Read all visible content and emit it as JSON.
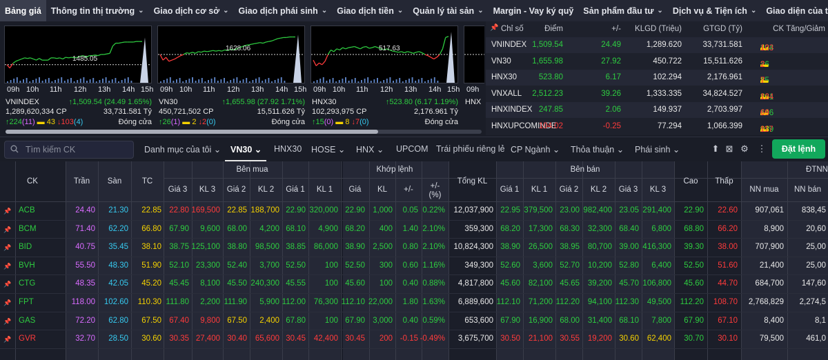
{
  "nav": {
    "items": [
      {
        "label": "Bảng giá",
        "chev": false,
        "active": true
      },
      {
        "label": "Thông tin thị trường",
        "chev": true
      },
      {
        "label": "Giao dịch cơ sở",
        "chev": true
      },
      {
        "label": "Giao dịch phái sinh",
        "chev": true
      },
      {
        "label": "Giao dịch tiền",
        "chev": true
      },
      {
        "label": "Quản lý tài sản",
        "chev": true
      },
      {
        "label": "Margin - Vay ký quỹ",
        "chev": false
      },
      {
        "label": "Sản phẩm đầu tư",
        "chev": true
      },
      {
        "label": "Dịch vụ & Tiện ích",
        "chev": true
      },
      {
        "label": "Giao diện của tôi",
        "chev": false
      }
    ]
  },
  "charts": [
    {
      "name": "VNINDEX",
      "ref_label": "1485.05",
      "change": "1,509.54 (24.49 1.65%)",
      "volume": "1,289,620,334 CP",
      "value": "33,731.581 Tỷ",
      "up": "224",
      "ceil": "(11)",
      "flat": "43",
      "down": "103",
      "floor": "(4)",
      "status": "Đóng cửa",
      "hours": [
        "09h",
        "10h",
        "11h",
        "12h",
        "13h",
        "14h",
        "15h"
      ],
      "ref_level": 0.68,
      "end_level": 0.2,
      "line": [
        0.68,
        0.74,
        0.66,
        0.62,
        0.6,
        0.58,
        0.56,
        0.57,
        0.56,
        0.58,
        0.6,
        0.57,
        0.6,
        0.6,
        0.6,
        0.56,
        0.56,
        0.57,
        0.56,
        0.58,
        0.55,
        0.56,
        0.55,
        0.56,
        0.55,
        0.53,
        0.52,
        0.55,
        0.52,
        0.52,
        0.51,
        0.52,
        0.5,
        0.5,
        0.49,
        0.48,
        0.35,
        0.3,
        0.3,
        0.29,
        0.28,
        0.28,
        0.28,
        0.28,
        0.27,
        0.27,
        0.27
      ]
    },
    {
      "name": "VN30",
      "ref_label": "1628.06",
      "change": "1,655.98 (27.92 1.71%)",
      "volume": "450,721,502 CP",
      "value": "15,511.626 Tỷ",
      "up": "26",
      "ceil": "(1)",
      "flat": "2",
      "down": "2",
      "floor": "(0)",
      "status": "Đóng cửa",
      "hours": [
        "09h",
        "10h",
        "11h",
        "12h",
        "13h",
        "14h",
        "15h"
      ],
      "ref_level": 0.5,
      "end_level": 0.15,
      "line": [
        0.5,
        0.6,
        0.55,
        0.62,
        0.6,
        0.58,
        0.55,
        0.52,
        0.5,
        0.47,
        0.48,
        0.46,
        0.48,
        0.45,
        0.46,
        0.44,
        0.45,
        0.44,
        0.43,
        0.44,
        0.43,
        0.44,
        0.42,
        0.43,
        0.41,
        0.42,
        0.4,
        0.38,
        0.36,
        0.34,
        0.33,
        0.32,
        0.31,
        0.3,
        0.29,
        0.3,
        0.28,
        0.27,
        0.26,
        0.24,
        0.22,
        0.21,
        0.2,
        0.2,
        0.19,
        0.19,
        0.19
      ]
    },
    {
      "name": "HNX30",
      "ref_label": "517.63",
      "change": "523.80 (6.17 1.19%)",
      "volume": "102,293,975 CP",
      "value": "2,176.961 Tỷ",
      "up": "15",
      "ceil": "(0)",
      "flat": "8",
      "down": "7",
      "floor": "(0)",
      "status": "Đóng cửa",
      "hours": [
        "09h",
        "10h",
        "11h",
        "12h",
        "13h",
        "14h",
        "15h"
      ],
      "ref_level": 0.5,
      "end_level": 0.1,
      "line": [
        0.6,
        0.7,
        0.65,
        0.68,
        0.62,
        0.5,
        0.42,
        0.45,
        0.4,
        0.42,
        0.38,
        0.4,
        0.38,
        0.37,
        0.36,
        0.38,
        0.4,
        0.37,
        0.36,
        0.39,
        0.38,
        0.36,
        0.38,
        0.4,
        0.42,
        0.4,
        0.42,
        0.44,
        0.45,
        0.46,
        0.45,
        0.47,
        0.45,
        0.46,
        0.48,
        0.46,
        0.45,
        0.47,
        0.5,
        0.52,
        0.55,
        0.58,
        0.55,
        0.5,
        0.4,
        0.2,
        0.18
      ]
    },
    {
      "name": "HNX",
      "ref_label": "",
      "change": "",
      "volume": "",
      "value": "",
      "up": "",
      "ceil": "",
      "flat": "",
      "down": "",
      "floor": "",
      "status": "",
      "hours": [
        "09h"
      ],
      "ref_level": 0.5,
      "end_level": 0.5,
      "line": []
    }
  ],
  "index_table": {
    "headers": {
      "name": "Chỉ số",
      "point": "Điểm",
      "change": "+/-",
      "klgd": "KLGD (Triệu)",
      "gtgd": "GTGD (Tỷ)",
      "breadth": "CK Tăng/Giảm"
    },
    "rows": [
      {
        "name": "VNINDEX",
        "point": "1,509.54",
        "change": "24.49",
        "klgd": "1,289.620",
        "gtgd": "33,731.581",
        "up": "224",
        "flat": "43",
        "down": "103",
        "color": "green"
      },
      {
        "name": "VN30",
        "point": "1,655.98",
        "change": "27.92",
        "klgd": "450.722",
        "gtgd": "15,511.626",
        "up": "26",
        "flat": "2",
        "down": "2",
        "color": "green"
      },
      {
        "name": "HNX30",
        "point": "523.80",
        "change": "6.17",
        "klgd": "102.294",
        "gtgd": "2,176.961",
        "up": "15",
        "flat": "8",
        "down": "7",
        "color": "green"
      },
      {
        "name": "VNXALL",
        "point": "2,512.23",
        "change": "39.26",
        "klgd": "1,333.335",
        "gtgd": "34,824.527",
        "up": "261",
        "flat": "86",
        "down": "124",
        "color": "green"
      },
      {
        "name": "HNXINDEX",
        "point": "247.85",
        "change": "2.06",
        "klgd": "149.937",
        "gtgd": "2,703.997",
        "up": "106",
        "flat": "64",
        "down": "69",
        "color": "green"
      },
      {
        "name": "HNXUPCOMINDE",
        "point": "104.02",
        "change": "-0.25",
        "klgd": "77.294",
        "gtgd": "1,066.399",
        "up": "149",
        "flat": "93",
        "down": "117",
        "color": "red"
      }
    ]
  },
  "toolbar": {
    "search_placeholder": "Tìm kiếm CK",
    "tabs": [
      {
        "label": "Danh mục của tôi",
        "chev": true
      },
      {
        "label": "VN30",
        "chev": true,
        "active": true
      },
      {
        "label": "HNX30",
        "chev": false
      },
      {
        "label": "HOSE",
        "chev": true
      },
      {
        "label": "HNX",
        "chev": true
      },
      {
        "label": "UPCOM",
        "chev": false
      },
      {
        "label": "Trái phiếu riêng lẻ",
        "chev": false
      },
      {
        "label": "CP Ngành",
        "chev": true
      },
      {
        "label": "Thỏa thuận",
        "chev": true
      },
      {
        "label": "Phái sinh",
        "chev": true
      }
    ],
    "order_button": "Đặt lệnh",
    "icons": [
      "arrow-up-icon",
      "excel-icon",
      "gear-icon",
      "more-vertical-icon"
    ]
  },
  "table": {
    "headers": {
      "ck": "CK",
      "tran": "Trần",
      "san": "Sàn",
      "tc": "TC",
      "ben_mua": "Bên mua",
      "khop_lenh": "Khớp lệnh",
      "tong_kl": "Tổng KL",
      "ben_ban": "Bên bán",
      "cao": "Cao",
      "thap": "Thấp",
      "dtnn": "ĐTNN",
      "gia3": "Giá 3",
      "kl3": "KL 3",
      "gia2": "Giá 2",
      "kl2": "KL 2",
      "gia1": "Giá 1",
      "kl1": "KL 1",
      "gia": "Giá",
      "kl": "KL",
      "pm": "+/-",
      "pct": "+/-",
      "pct_unit": "(%)",
      "nn_mua": "NN mua",
      "nn_ban": "NN bán"
    },
    "rows": [
      {
        "ck": "ACB",
        "tran": "24.40",
        "san": "21.30",
        "tc": "22.85",
        "b3": "22.80",
        "bk3": "169,500",
        "b2": "22.85",
        "bk2": "188,700",
        "b1": "22.90",
        "bk1": "320,000",
        "m": "22.90",
        "mk": "1,000",
        "pm": "0.05",
        "pct": "0.22%",
        "tkl": "12,037,900",
        "s1": "22.95",
        "sk1": "379,500",
        "s2": "23.00",
        "sk2": "982,400",
        "s3": "23.05",
        "sk3": "291,400",
        "cao": "22.90",
        "thap": "22.60",
        "nnm": "907,061",
        "nnb": "838,45",
        "cols": {
          "b3": "red",
          "b2": "yellow",
          "b1": "green",
          "m": "green",
          "s1": "green",
          "s2": "green",
          "s3": "green",
          "cao": "green",
          "thap": "red",
          "ck": "green"
        }
      },
      {
        "ck": "BCM",
        "tran": "71.40",
        "san": "62.20",
        "tc": "66.80",
        "b3": "67.90",
        "bk3": "9,600",
        "b2": "68.00",
        "bk2": "4,200",
        "b1": "68.10",
        "bk1": "4,900",
        "m": "68.20",
        "mk": "400",
        "pm": "1.40",
        "pct": "2.10%",
        "tkl": "359,300",
        "s1": "68.20",
        "sk1": "17,300",
        "s2": "68.30",
        "sk2": "32,300",
        "s3": "68.40",
        "sk3": "6,800",
        "cao": "68.80",
        "thap": "66.20",
        "nnm": "8,900",
        "nnb": "20,60",
        "cols": {
          "b3": "green",
          "b2": "green",
          "b1": "green",
          "m": "green",
          "s1": "green",
          "s2": "green",
          "s3": "green",
          "cao": "green",
          "thap": "red",
          "ck": "green"
        }
      },
      {
        "ck": "BID",
        "tran": "40.75",
        "san": "35.45",
        "tc": "38.10",
        "b3": "38.75",
        "bk3": "125,100",
        "b2": "38.80",
        "bk2": "98,500",
        "b1": "38.85",
        "bk1": "86,000",
        "m": "38.90",
        "mk": "2,500",
        "pm": "0.80",
        "pct": "2.10%",
        "tkl": "10,824,300",
        "s1": "38.90",
        "sk1": "26,500",
        "s2": "38.95",
        "sk2": "80,700",
        "s3": "39.00",
        "sk3": "416,300",
        "cao": "39.30",
        "thap": "38.00",
        "nnm": "707,900",
        "nnb": "25,00",
        "cols": {
          "b3": "green",
          "b2": "green",
          "b1": "green",
          "m": "green",
          "s1": "green",
          "s2": "green",
          "s3": "green",
          "cao": "green",
          "thap": "red",
          "ck": "green"
        }
      },
      {
        "ck": "BVH",
        "tran": "55.50",
        "san": "48.30",
        "tc": "51.90",
        "b3": "52.10",
        "bk3": "23,300",
        "b2": "52.40",
        "bk2": "3,700",
        "b1": "52.50",
        "bk1": "100",
        "m": "52.50",
        "mk": "300",
        "pm": "0.60",
        "pct": "1.16%",
        "tkl": "349,300",
        "s1": "52.60",
        "sk1": "3,600",
        "s2": "52.70",
        "sk2": "10,200",
        "s3": "52.80",
        "sk3": "6,400",
        "cao": "52.50",
        "thap": "51.60",
        "nnm": "21,400",
        "nnb": "25,00",
        "cols": {
          "b3": "green",
          "b2": "green",
          "b1": "green",
          "m": "green",
          "s1": "green",
          "s2": "green",
          "s3": "green",
          "cao": "green",
          "thap": "red",
          "ck": "green"
        }
      },
      {
        "ck": "CTG",
        "tran": "48.35",
        "san": "42.05",
        "tc": "45.20",
        "b3": "45.45",
        "bk3": "8,100",
        "b2": "45.50",
        "bk2": "240,300",
        "b1": "45.55",
        "bk1": "100",
        "m": "45.60",
        "mk": "100",
        "pm": "0.40",
        "pct": "0.88%",
        "tkl": "4,817,800",
        "s1": "45.60",
        "sk1": "82,100",
        "s2": "45.65",
        "sk2": "39,200",
        "s3": "45.70",
        "sk3": "106,800",
        "cao": "45.60",
        "thap": "44.70",
        "nnm": "684,700",
        "nnb": "147,60",
        "cols": {
          "b3": "green",
          "b2": "green",
          "b1": "green",
          "m": "green",
          "s1": "green",
          "s2": "green",
          "s3": "green",
          "cao": "green",
          "thap": "red",
          "ck": "green"
        }
      },
      {
        "ck": "FPT",
        "tran": "118.00",
        "san": "102.60",
        "tc": "110.30",
        "b3": "111.80",
        "bk3": "2,200",
        "b2": "111.90",
        "bk2": "5,900",
        "b1": "112.00",
        "bk1": "76,300",
        "m": "112.10",
        "mk": "22,000",
        "pm": "1.80",
        "pct": "1.63%",
        "tkl": "6,889,600",
        "s1": "112.10",
        "sk1": "71,200",
        "s2": "112.20",
        "sk2": "94,100",
        "s3": "112.30",
        "sk3": "49,500",
        "cao": "112.20",
        "thap": "108.70",
        "nnm": "2,768,829",
        "nnb": "2,274,5",
        "cols": {
          "b3": "green",
          "b2": "green",
          "b1": "green",
          "m": "green",
          "s1": "green",
          "s2": "green",
          "s3": "green",
          "cao": "green",
          "thap": "red",
          "ck": "green"
        }
      },
      {
        "ck": "GAS",
        "tran": "72.20",
        "san": "62.80",
        "tc": "67.50",
        "b3": "67.40",
        "bk3": "9,800",
        "b2": "67.50",
        "bk2": "2,400",
        "b1": "67.80",
        "bk1": "100",
        "m": "67.90",
        "mk": "3,000",
        "pm": "0.40",
        "pct": "0.59%",
        "tkl": "653,600",
        "s1": "67.90",
        "sk1": "16,900",
        "s2": "68.00",
        "sk2": "31,400",
        "s3": "68.10",
        "sk3": "7,800",
        "cao": "67.90",
        "thap": "67.10",
        "nnm": "8,400",
        "nnb": "8,1",
        "cols": {
          "b3": "red",
          "b2": "yellow",
          "b1": "green",
          "m": "green",
          "s1": "green",
          "s2": "green",
          "s3": "green",
          "cao": "green",
          "thap": "red",
          "ck": "green"
        }
      },
      {
        "ck": "GVR",
        "tran": "32.70",
        "san": "28.50",
        "tc": "30.60",
        "b3": "30.35",
        "bk3": "27,400",
        "b2": "30.40",
        "bk2": "65,600",
        "b1": "30.45",
        "bk1": "42,400",
        "m": "30.45",
        "mk": "200",
        "pm": "-0.15",
        "pct": "-0.49%",
        "tkl": "3,675,700",
        "s1": "30.50",
        "sk1": "21,100",
        "s2": "30.55",
        "sk2": "19,200",
        "s3": "30.60",
        "sk3": "62,400",
        "cao": "30.70",
        "thap": "30.10",
        "nnm": "79,500",
        "nnb": "461,0",
        "cols": {
          "b3": "red",
          "b2": "red",
          "b1": "red",
          "m": "red",
          "s1": "red",
          "s2": "red",
          "s3": "yellow",
          "cao": "green",
          "thap": "red",
          "ck": "red"
        }
      }
    ]
  }
}
